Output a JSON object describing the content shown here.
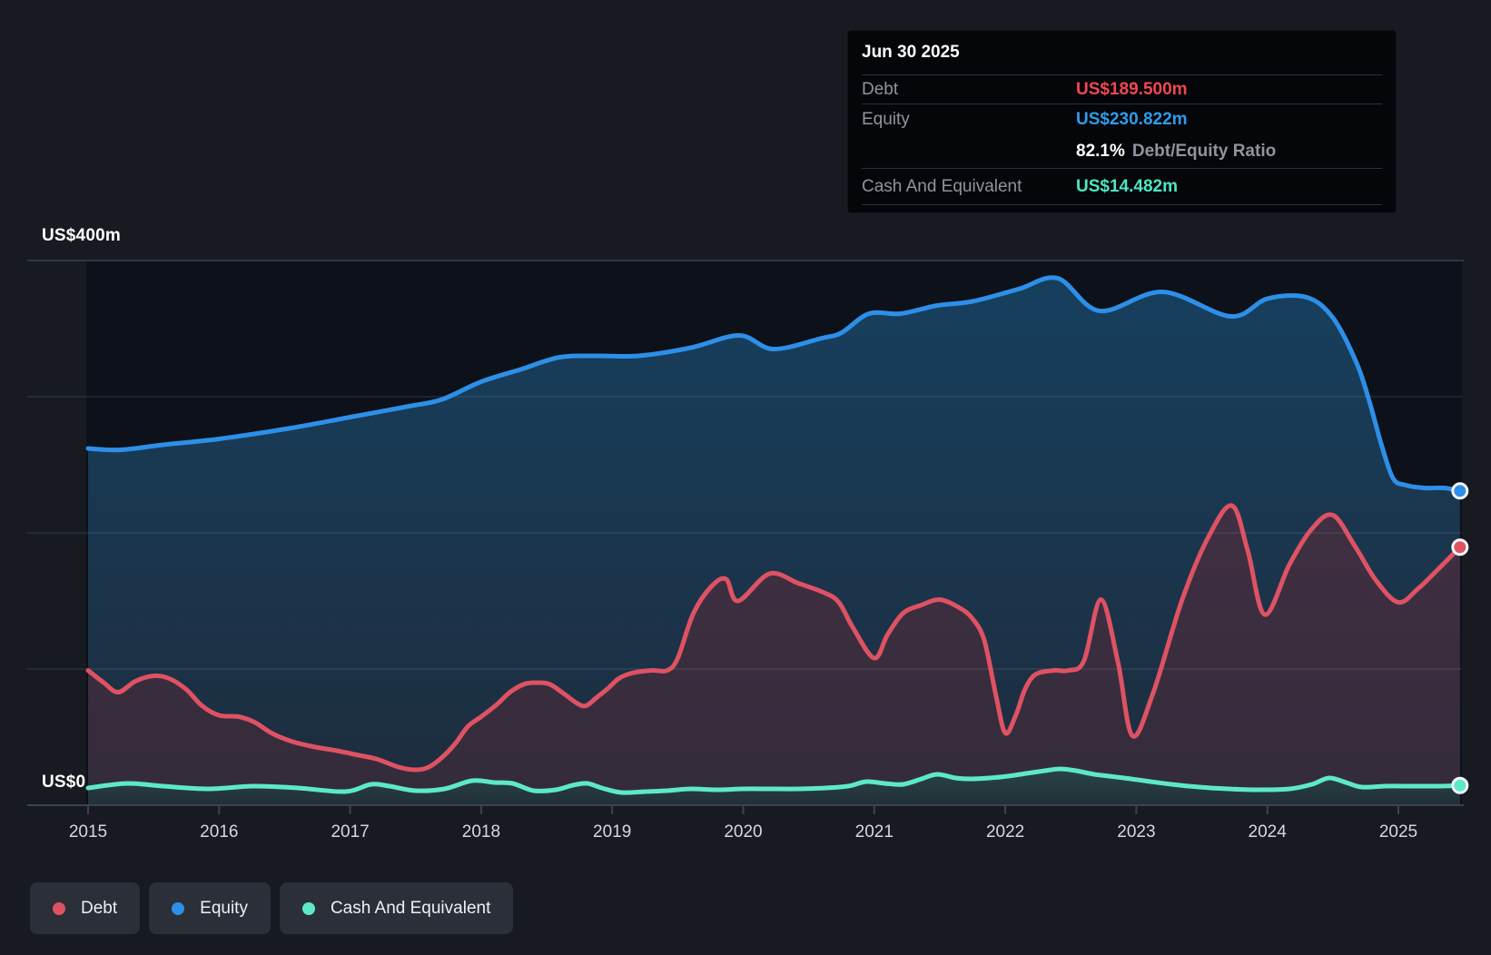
{
  "tooltip": {
    "date": "Jun 30 2025",
    "debt_label": "Debt",
    "debt_value": "US$189.500m",
    "debt_color": "#f2474f",
    "equity_label": "Equity",
    "equity_value": "US$230.822m",
    "equity_color": "#2f9ceb",
    "ratio_value": "82.1%",
    "ratio_label": "Debt/Equity Ratio",
    "cash_label": "Cash And Equivalent",
    "cash_value": "US$14.482m",
    "cash_color": "#4de6c2"
  },
  "legend": {
    "debt": "Debt",
    "equity": "Equity",
    "cash": "Cash And Equivalent"
  },
  "axis": {
    "y_top_label": "US$400m",
    "y_zero_label": "US$0"
  },
  "chart_data": {
    "type": "area",
    "title": "",
    "xlabel": "",
    "ylabel": "US$m",
    "x_ticks": [
      2015,
      2016,
      2017,
      2018,
      2019,
      2020,
      2021,
      2022,
      2023,
      2024,
      2025
    ],
    "x_range": [
      2015,
      2025.47
    ],
    "y_axis": {
      "min": 0,
      "max": 400,
      "gridline_step": 100,
      "unit": "US$m"
    },
    "grid": true,
    "legend_position": "bottom-left",
    "hovered_point": {
      "date": "Jun 30 2025",
      "Debt": 189.5,
      "Equity": 230.822,
      "Cash And Equivalent": 14.482,
      "debt_equity_ratio_pct": 82.1
    },
    "series": [
      {
        "name": "Equity",
        "color": "#2d8fe8",
        "points": [
          [
            2015,
            262
          ],
          [
            2015.25,
            261
          ],
          [
            2015.6,
            265
          ],
          [
            2016,
            269
          ],
          [
            2016.55,
            277
          ],
          [
            2017,
            285
          ],
          [
            2017.45,
            293
          ],
          [
            2017.7,
            298
          ],
          [
            2018,
            311
          ],
          [
            2018.3,
            320
          ],
          [
            2018.6,
            329
          ],
          [
            2018.9,
            330
          ],
          [
            2019.2,
            330
          ],
          [
            2019.6,
            336
          ],
          [
            2019.97,
            345
          ],
          [
            2020.23,
            335
          ],
          [
            2020.6,
            343
          ],
          [
            2020.75,
            347
          ],
          [
            2020.96,
            361
          ],
          [
            2021.2,
            361
          ],
          [
            2021.48,
            367
          ],
          [
            2021.75,
            370
          ],
          [
            2022.1,
            379
          ],
          [
            2022.4,
            387
          ],
          [
            2022.72,
            363
          ],
          [
            2023.2,
            377
          ],
          [
            2023.72,
            359
          ],
          [
            2024,
            372
          ],
          [
            2024.3,
            373
          ],
          [
            2024.5,
            358
          ],
          [
            2024.68,
            325
          ],
          [
            2024.78,
            296
          ],
          [
            2024.87,
            265
          ],
          [
            2024.96,
            240
          ],
          [
            2025.06,
            235
          ],
          [
            2025.2,
            233
          ],
          [
            2025.35,
            233
          ],
          [
            2025.47,
            230.8
          ]
        ]
      },
      {
        "name": "Debt",
        "color": "#de5263",
        "points": [
          [
            2015,
            99
          ],
          [
            2015.12,
            90
          ],
          [
            2015.23,
            83
          ],
          [
            2015.36,
            91
          ],
          [
            2015.5,
            95
          ],
          [
            2015.62,
            93
          ],
          [
            2015.75,
            85
          ],
          [
            2015.87,
            73
          ],
          [
            2016,
            66
          ],
          [
            2016.15,
            65
          ],
          [
            2016.27,
            61
          ],
          [
            2016.4,
            53
          ],
          [
            2016.55,
            47
          ],
          [
            2016.72,
            43
          ],
          [
            2016.9,
            40
          ],
          [
            2017.05,
            37
          ],
          [
            2017.2,
            34
          ],
          [
            2017.37,
            28
          ],
          [
            2017.5,
            26
          ],
          [
            2017.6,
            28
          ],
          [
            2017.7,
            35
          ],
          [
            2017.8,
            45
          ],
          [
            2017.9,
            58
          ],
          [
            2018,
            65
          ],
          [
            2018.12,
            74
          ],
          [
            2018.22,
            83
          ],
          [
            2018.33,
            89
          ],
          [
            2018.42,
            90
          ],
          [
            2018.52,
            89
          ],
          [
            2018.63,
            82
          ],
          [
            2018.73,
            75
          ],
          [
            2018.8,
            73
          ],
          [
            2018.88,
            79
          ],
          [
            2018.97,
            86
          ],
          [
            2019.05,
            93
          ],
          [
            2019.15,
            97
          ],
          [
            2019.3,
            99
          ],
          [
            2019.42,
            99
          ],
          [
            2019.5,
            108
          ],
          [
            2019.62,
            141
          ],
          [
            2019.76,
            161
          ],
          [
            2019.87,
            166
          ],
          [
            2019.96,
            150
          ],
          [
            2020.2,
            170
          ],
          [
            2020.42,
            163
          ],
          [
            2020.62,
            156
          ],
          [
            2020.73,
            149
          ],
          [
            2020.84,
            130
          ],
          [
            2021,
            108
          ],
          [
            2021.1,
            125
          ],
          [
            2021.22,
            141
          ],
          [
            2021.36,
            147
          ],
          [
            2021.5,
            151
          ],
          [
            2021.65,
            145
          ],
          [
            2021.75,
            137
          ],
          [
            2021.84,
            121
          ],
          [
            2021.93,
            80
          ],
          [
            2022,
            53
          ],
          [
            2022.08,
            66
          ],
          [
            2022.15,
            85
          ],
          [
            2022.23,
            96
          ],
          [
            2022.37,
            99
          ],
          [
            2022.48,
            99
          ],
          [
            2022.6,
            106
          ],
          [
            2022.73,
            151
          ],
          [
            2022.86,
            105
          ],
          [
            2022.97,
            51
          ],
          [
            2023.13,
            83
          ],
          [
            2023.35,
            151
          ],
          [
            2023.55,
            197
          ],
          [
            2023.73,
            220
          ],
          [
            2023.85,
            187
          ],
          [
            2023.98,
            140
          ],
          [
            2024.17,
            177
          ],
          [
            2024.34,
            203
          ],
          [
            2024.5,
            213
          ],
          [
            2024.67,
            190
          ],
          [
            2024.83,
            165
          ],
          [
            2025,
            149
          ],
          [
            2025.15,
            159
          ],
          [
            2025.3,
            173
          ],
          [
            2025.47,
            189.5
          ]
        ]
      },
      {
        "name": "Cash And Equivalent",
        "color": "#5de9c9",
        "points": [
          [
            2015,
            12.7
          ],
          [
            2015.3,
            16
          ],
          [
            2015.57,
            14
          ],
          [
            2015.92,
            12
          ],
          [
            2016.26,
            14
          ],
          [
            2016.6,
            12.7
          ],
          [
            2016.96,
            10
          ],
          [
            2017.16,
            15.3
          ],
          [
            2017.3,
            14
          ],
          [
            2017.5,
            10.7
          ],
          [
            2017.72,
            12
          ],
          [
            2017.93,
            18
          ],
          [
            2018.1,
            16.7
          ],
          [
            2018.24,
            16
          ],
          [
            2018.4,
            10.7
          ],
          [
            2018.57,
            11.3
          ],
          [
            2018.7,
            14.7
          ],
          [
            2018.81,
            16
          ],
          [
            2018.92,
            12.7
          ],
          [
            2019.07,
            9.3
          ],
          [
            2019.25,
            10
          ],
          [
            2019.42,
            10.7
          ],
          [
            2019.6,
            12
          ],
          [
            2019.8,
            11.3
          ],
          [
            2020,
            12
          ],
          [
            2020.2,
            12
          ],
          [
            2020.42,
            12
          ],
          [
            2020.63,
            12.7
          ],
          [
            2020.8,
            14
          ],
          [
            2020.94,
            17.3
          ],
          [
            2021.08,
            16
          ],
          [
            2021.22,
            15.3
          ],
          [
            2021.36,
            19.3
          ],
          [
            2021.48,
            22.7
          ],
          [
            2021.62,
            20
          ],
          [
            2021.74,
            19.3
          ],
          [
            2021.88,
            20
          ],
          [
            2022.02,
            21.3
          ],
          [
            2022.16,
            23.3
          ],
          [
            2022.3,
            25.3
          ],
          [
            2022.42,
            26.7
          ],
          [
            2022.54,
            25.3
          ],
          [
            2022.68,
            22.7
          ],
          [
            2022.85,
            20.7
          ],
          [
            2023.06,
            18
          ],
          [
            2023.27,
            15.3
          ],
          [
            2023.48,
            13.3
          ],
          [
            2023.7,
            12
          ],
          [
            2023.93,
            11.3
          ],
          [
            2024.17,
            12
          ],
          [
            2024.34,
            15.3
          ],
          [
            2024.47,
            20
          ],
          [
            2024.6,
            16.7
          ],
          [
            2024.72,
            13.3
          ],
          [
            2024.9,
            14
          ],
          [
            2025.1,
            14
          ],
          [
            2025.3,
            14
          ],
          [
            2025.47,
            14.5
          ]
        ]
      }
    ]
  }
}
